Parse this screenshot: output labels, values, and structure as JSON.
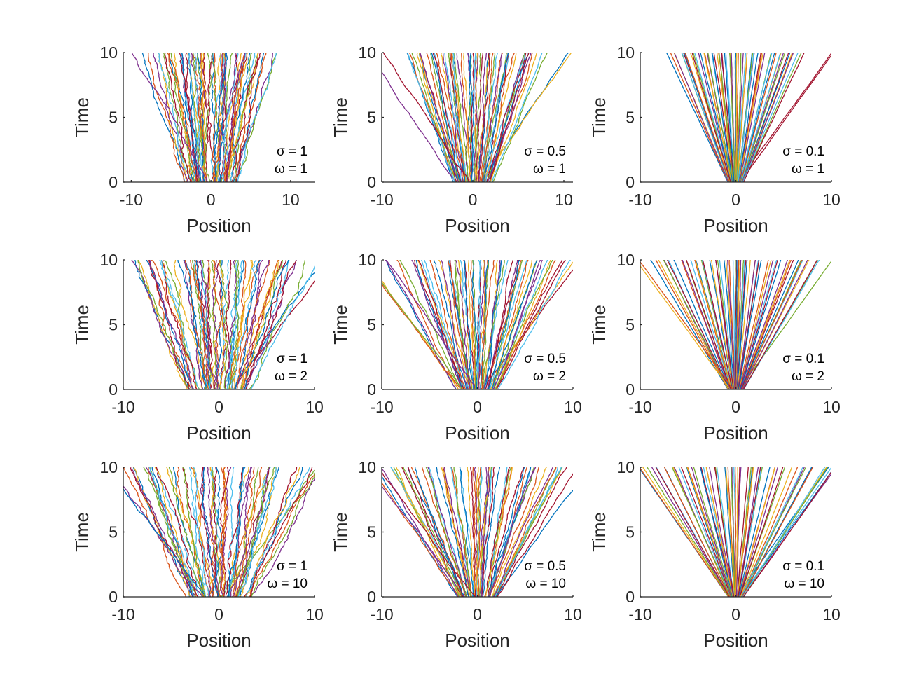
{
  "chart_data": [
    {
      "type": "line",
      "xlabel": "Position",
      "ylabel": "Time",
      "xlim": [
        -11,
        13
      ],
      "ylim": [
        0,
        10
      ],
      "xticks": [
        "-10",
        "0",
        "10"
      ],
      "yticks": [
        "0",
        "5",
        "10"
      ],
      "params": {
        "sigma": 1,
        "omega": 1
      },
      "annotation": [
        "σ = 1",
        "ω = 1"
      ]
    },
    {
      "type": "line",
      "xlabel": "Position",
      "ylabel": "Time",
      "xlim": [
        -10,
        11
      ],
      "ylim": [
        0,
        10
      ],
      "xticks": [
        "-10",
        "0",
        "10"
      ],
      "yticks": [
        "0",
        "5",
        "10"
      ],
      "params": {
        "sigma": 0.5,
        "omega": 1
      },
      "annotation": [
        "σ = 0.5",
        "ω = 1"
      ]
    },
    {
      "type": "line",
      "xlabel": "Position",
      "ylabel": "Time",
      "xlim": [
        -10,
        10
      ],
      "ylim": [
        0,
        10
      ],
      "xticks": [
        "-10",
        "0",
        "10"
      ],
      "yticks": [
        "0",
        "5",
        "10"
      ],
      "params": {
        "sigma": 0.1,
        "omega": 1
      },
      "annotation": [
        "σ = 0.1",
        "ω = 1"
      ]
    },
    {
      "type": "line",
      "xlabel": "Position",
      "ylabel": "Time",
      "xlim": [
        -10,
        10
      ],
      "ylim": [
        0,
        10
      ],
      "xticks": [
        "-10",
        "0",
        "10"
      ],
      "yticks": [
        "0",
        "5",
        "10"
      ],
      "params": {
        "sigma": 1,
        "omega": 2
      },
      "annotation": [
        "σ = 1",
        "ω = 2"
      ]
    },
    {
      "type": "line",
      "xlabel": "Position",
      "ylabel": "Time",
      "xlim": [
        -10,
        10
      ],
      "ylim": [
        0,
        10
      ],
      "xticks": [
        "-10",
        "0",
        "10"
      ],
      "yticks": [
        "0",
        "5",
        "10"
      ],
      "params": {
        "sigma": 0.5,
        "omega": 2
      },
      "annotation": [
        "σ = 0.5",
        "ω = 2"
      ]
    },
    {
      "type": "line",
      "xlabel": "Position",
      "ylabel": "Time",
      "xlim": [
        -10,
        10
      ],
      "ylim": [
        0,
        10
      ],
      "xticks": [
        "-10",
        "0",
        "10"
      ],
      "yticks": [
        "0",
        "5",
        "10"
      ],
      "params": {
        "sigma": 0.1,
        "omega": 2
      },
      "annotation": [
        "σ = 0.1",
        "ω = 2"
      ]
    },
    {
      "type": "line",
      "xlabel": "Position",
      "ylabel": "Time",
      "xlim": [
        -10,
        10
      ],
      "ylim": [
        0,
        10
      ],
      "xticks": [
        "-10",
        "0",
        "10"
      ],
      "yticks": [
        "0",
        "5",
        "10"
      ],
      "params": {
        "sigma": 1,
        "omega": 10
      },
      "annotation": [
        "σ = 1",
        "ω = 10"
      ]
    },
    {
      "type": "line",
      "xlabel": "Position",
      "ylabel": "Time",
      "xlim": [
        -10,
        10
      ],
      "ylim": [
        0,
        10
      ],
      "xticks": [
        "-10",
        "0",
        "10"
      ],
      "yticks": [
        "0",
        "5",
        "10"
      ],
      "params": {
        "sigma": 0.5,
        "omega": 10
      },
      "annotation": [
        "σ = 0.5",
        "ω = 10"
      ]
    },
    {
      "type": "line",
      "xlabel": "Position",
      "ylabel": "Time",
      "xlim": [
        -10,
        10
      ],
      "ylim": [
        0,
        10
      ],
      "xticks": [
        "-10",
        "0",
        "10"
      ],
      "yticks": [
        "0",
        "5",
        "10"
      ],
      "params": {
        "sigma": 0.1,
        "omega": 10
      },
      "annotation": [
        "σ = 0.1",
        "ω = 10"
      ]
    }
  ],
  "colors": [
    "#0072BD",
    "#D95319",
    "#EDB120",
    "#7E2F8E",
    "#77AC30",
    "#4DBEEE",
    "#A2142F"
  ]
}
